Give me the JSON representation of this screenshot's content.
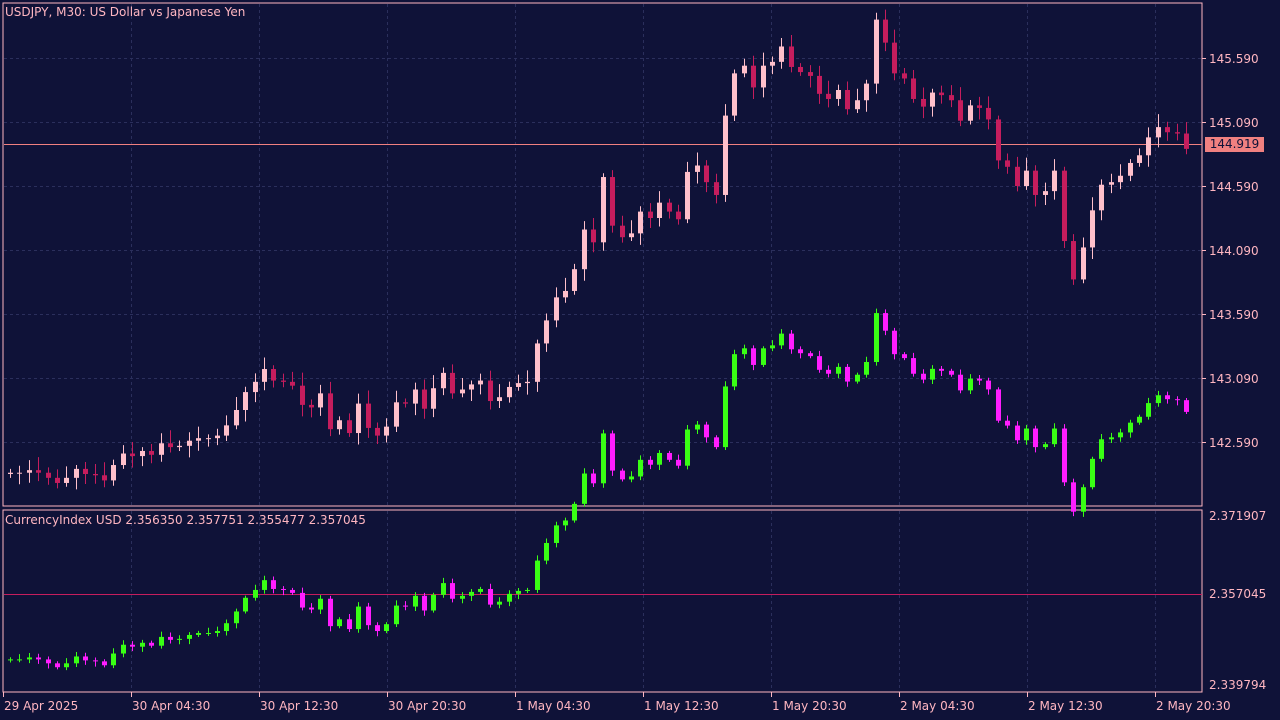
{
  "colors": {
    "background": "#0f1238",
    "frame": "#ffb6c1",
    "grid": "#2b2f5c",
    "bull": "#ffc0cb",
    "bear": "#c51d5d",
    "ind_bull": "#39ff14",
    "ind_bear": "#ff1dff",
    "current_line": "#f08080"
  },
  "main": {
    "title": "USDJPY, M30:  US Dollar vs Japanese Yen",
    "price_labels": [
      "145.590",
      "145.090",
      "144.590",
      "144.090",
      "143.590",
      "143.090",
      "142.590"
    ],
    "price_values": [
      145.59,
      145.09,
      144.59,
      144.09,
      143.59,
      143.09,
      142.59
    ],
    "current_price": "144.919",
    "current_value": 144.919
  },
  "indicator": {
    "title": "CurrencyIndex USD 2.356350 2.357751 2.355477 2.357045",
    "top_label": "2.371907",
    "current_label": "2.357045",
    "bottom_label": "2.339794"
  },
  "time_axis": [
    "29 Apr 2025",
    "30 Apr 04:30",
    "30 Apr 12:30",
    "30 Apr 20:30",
    "1 May 04:30",
    "1 May 12:30",
    "1 May 20:30",
    "2 May 04:30",
    "2 May 12:30",
    "2 May 20:30"
  ],
  "chart_data": [
    {
      "type": "candlestick",
      "symbol": "USDJPY",
      "timeframe": "M30",
      "title": "USDJPY, M30:  US Dollar vs Japanese Yen",
      "ylim": [
        142.2,
        146.05
      ],
      "y_ticks": [
        142.59,
        143.09,
        143.59,
        144.09,
        144.59,
        145.09,
        145.59
      ],
      "x_tick_labels": [
        "29 Apr 2025",
        "30 Apr 04:30",
        "30 Apr 12:30",
        "30 Apr 20:30",
        "1 May 04:30",
        "1 May 12:30",
        "1 May 20:30",
        "2 May 04:30",
        "2 May 12:30",
        "2 May 20:30"
      ],
      "closes": [
        142.35,
        142.35,
        142.37,
        142.35,
        142.31,
        142.27,
        142.31,
        142.38,
        142.34,
        142.33,
        142.29,
        142.41,
        142.5,
        142.48,
        142.52,
        142.49,
        142.58,
        142.55,
        142.56,
        142.6,
        142.62,
        142.62,
        142.64,
        142.72,
        142.84,
        142.98,
        143.06,
        143.16,
        143.07,
        143.06,
        143.03,
        142.88,
        142.86,
        142.97,
        142.69,
        142.76,
        142.66,
        142.89,
        142.7,
        142.64,
        142.71,
        142.9,
        142.89,
        143.0,
        142.85,
        143.01,
        143.13,
        142.97,
        143.0,
        143.04,
        143.07,
        142.91,
        142.94,
        143.02,
        143.05,
        143.06,
        143.36,
        143.54,
        143.72,
        143.77,
        143.94,
        144.25,
        144.15,
        144.66,
        144.28,
        144.19,
        144.22,
        144.39,
        144.34,
        144.46,
        144.39,
        144.33,
        144.7,
        144.75,
        144.62,
        144.52,
        145.14,
        145.47,
        145.53,
        145.36,
        145.53,
        145.56,
        145.68,
        145.52,
        145.48,
        145.45,
        145.31,
        145.27,
        145.34,
        145.19,
        145.26,
        145.39,
        145.89,
        145.71,
        145.47,
        145.43,
        145.27,
        145.21,
        145.32,
        145.3,
        145.26,
        145.1,
        145.22,
        145.2,
        145.11,
        144.79,
        144.74,
        144.59,
        144.71,
        144.52,
        144.55,
        144.71,
        144.16,
        143.86,
        144.11,
        144.4,
        144.6,
        144.62,
        144.67,
        144.77,
        144.83,
        144.97,
        145.05,
        145.01,
        145.0,
        144.88
      ]
    },
    {
      "type": "candlestick",
      "title": "CurrencyIndex USD 2.356350 2.357751 2.355477 2.357045",
      "series_values": {
        "open": 2.35635,
        "high": 2.357751,
        "low": 2.355477,
        "close": 2.357045
      },
      "ylim": [
        2.339794,
        2.371907
      ],
      "y_tick_labels": [
        "2.371907",
        "2.357045",
        "2.339794"
      ]
    }
  ]
}
